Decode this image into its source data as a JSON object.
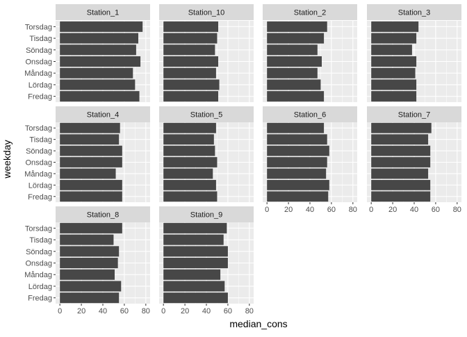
{
  "chart_data": {
    "type": "bar",
    "orientation": "horizontal",
    "facet_layout": "wrap-3-rows-4-cols",
    "xlabel": "median_cons",
    "ylabel": "weekday",
    "xlim": [
      0,
      80
    ],
    "xticks": [
      0,
      20,
      40,
      60,
      80
    ],
    "grid": true,
    "categories": [
      "Torsdag",
      "Tisdag",
      "Söndag",
      "Onsdag",
      "Måndag",
      "Lördag",
      "Fredag"
    ],
    "colors": {
      "bar": "#474747",
      "panel_bg": "#ebebeb",
      "grid": "#ffffff",
      "strip_bg": "#d9d9d9"
    },
    "facets": [
      {
        "name": "Station_1",
        "values": [
          77,
          73,
          71,
          75,
          68,
          70,
          74
        ]
      },
      {
        "name": "Station_10",
        "values": [
          51,
          50,
          48,
          51,
          49,
          52,
          51
        ]
      },
      {
        "name": "Station_2",
        "values": [
          56,
          53,
          47,
          51,
          47,
          50,
          53
        ]
      },
      {
        "name": "Station_3",
        "values": [
          44,
          42,
          38,
          42,
          41,
          42,
          42
        ]
      },
      {
        "name": "Station_4",
        "values": [
          56,
          55,
          58,
          58,
          52,
          58,
          58
        ]
      },
      {
        "name": "Station_5",
        "values": [
          49,
          47,
          48,
          50,
          46,
          49,
          50
        ]
      },
      {
        "name": "Station_6",
        "values": [
          53,
          56,
          58,
          56,
          55,
          58,
          57
        ]
      },
      {
        "name": "Station_7",
        "values": [
          56,
          53,
          55,
          55,
          53,
          55,
          55
        ]
      },
      {
        "name": "Station_8",
        "values": [
          58,
          50,
          55,
          54,
          51,
          57,
          55
        ]
      },
      {
        "name": "Station_9",
        "values": [
          59,
          56,
          60,
          60,
          53,
          57,
          60
        ]
      }
    ]
  }
}
